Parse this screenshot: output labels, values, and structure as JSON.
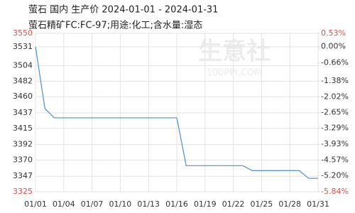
{
  "chart_data": {
    "type": "line",
    "title": "萤石 国内 生产价 2024-01-01 - 2024-01-31",
    "subtitle": "萤石精矿FC:FC-97;用途:化工;含水量:湿态",
    "watermark": "生意社",
    "watermark_url": "100PPI.COM",
    "categories": [
      "01/01",
      null,
      null,
      "01/04",
      null,
      null,
      "01/07",
      null,
      null,
      "01/10",
      null,
      null,
      "01/13",
      null,
      null,
      "01/16",
      null,
      null,
      "01/19",
      null,
      null,
      "01/22",
      null,
      null,
      "01/25",
      null,
      null,
      "01/28",
      null,
      null,
      "01/31"
    ],
    "series": [
      {
        "name": "萤石",
        "color": "#4f8fc9",
        "values": [
          3531,
          3443,
          3430,
          3430,
          3430,
          3430,
          3430,
          3430,
          3430,
          3430,
          3430,
          3430,
          3430,
          3430,
          3430,
          3430,
          3362,
          3362,
          3362,
          3362,
          3362,
          3362,
          3362,
          3355,
          3355,
          3355,
          3355,
          3355,
          3355,
          3344,
          3344
        ]
      }
    ],
    "ylim": [
      3325,
      3550
    ],
    "yticks": [
      3550,
      3531,
      3504,
      3482,
      3460,
      3437,
      3415,
      3392,
      3370,
      3347,
      3325
    ],
    "y2lim": [
      -5.84,
      0.53
    ],
    "y2ticks": [
      {
        "value": 0.53,
        "label": "0.53%"
      },
      {
        "value": 0.0,
        "label": "0.00%"
      },
      {
        "value": -0.66,
        "label": "-0.66%"
      },
      {
        "value": -1.38,
        "label": "-1.38%"
      },
      {
        "value": -2.02,
        "label": "-2.02%"
      },
      {
        "value": -2.65,
        "label": "-2.65%"
      },
      {
        "value": -3.29,
        "label": "-3.29%"
      },
      {
        "value": -3.93,
        "label": "-3.93%"
      },
      {
        "value": -4.57,
        "label": "-4.57%"
      },
      {
        "value": -5.2,
        "label": "-5.20%"
      },
      {
        "value": -5.84,
        "label": "-5.84%"
      }
    ],
    "grid": true
  }
}
